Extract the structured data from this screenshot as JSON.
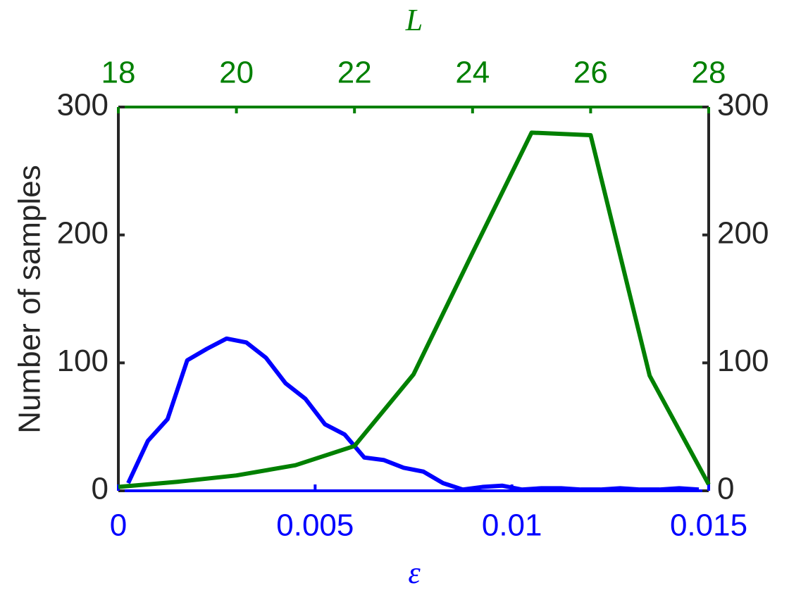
{
  "chart_data": {
    "type": "line",
    "y_label": "Number of samples",
    "x_label": "ε",
    "x2_label": "L",
    "xlim": [
      0,
      0.015
    ],
    "xticks": [
      0,
      0.005,
      0.01,
      0.015
    ],
    "x_color": "#0000ff",
    "x2lim": [
      18,
      28
    ],
    "x2ticks": [
      18,
      20,
      22,
      24,
      26,
      28
    ],
    "x2_color": "#008000",
    "ylim": [
      0,
      300
    ],
    "yticks": [
      0,
      100,
      200,
      300
    ],
    "y2lim": [
      0,
      300
    ],
    "y2ticks": [
      0,
      100,
      200,
      300
    ],
    "series": [
      {
        "color": "#0000ff",
        "x": [
          0.00025,
          0.00075,
          0.00125,
          0.00175,
          0.00225,
          0.00275,
          0.00325,
          0.00375,
          0.00425,
          0.00475,
          0.00525,
          0.00575,
          0.00625,
          0.00675,
          0.00725,
          0.00775,
          0.00825,
          0.00875,
          0.00925,
          0.00975,
          0.01025,
          0.01075,
          0.01125,
          0.01175,
          0.01225,
          0.01275,
          0.01325,
          0.01375,
          0.01425,
          0.01475
        ],
        "values": [
          6,
          39,
          56,
          102,
          111,
          119,
          116,
          104,
          84,
          72,
          52,
          44,
          26,
          24,
          18,
          15,
          6,
          1,
          3,
          4,
          1,
          2,
          2,
          1,
          1,
          2,
          1,
          1,
          2,
          1
        ]
      },
      {
        "color": "#008000",
        "xaxis": "x2",
        "x": [
          18,
          19,
          20,
          21,
          22,
          23,
          24,
          25,
          26,
          27,
          28
        ],
        "values": [
          3,
          7,
          12,
          20,
          35,
          91,
          186,
          280,
          278,
          90,
          5
        ]
      }
    ]
  }
}
